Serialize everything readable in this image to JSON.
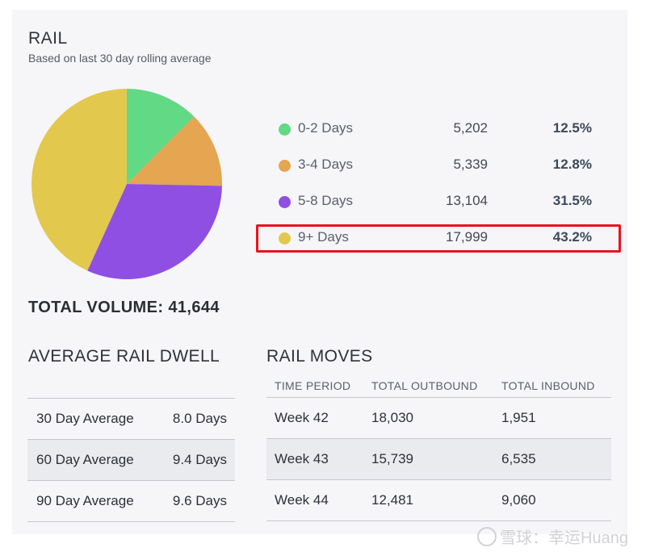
{
  "header": {
    "title": "RAIL",
    "subtitle": "Based on last 30 day rolling average"
  },
  "chart_data": {
    "type": "pie",
    "categories": [
      "0-2 Days",
      "3-4 Days",
      "5-8 Days",
      "9+ Days"
    ],
    "values": [
      5202,
      5339,
      13104,
      17999
    ],
    "percentages": [
      12.5,
      12.8,
      31.5,
      43.2
    ],
    "colors": [
      "#62d985",
      "#e5a551",
      "#8f4fe3",
      "#e3c84e"
    ]
  },
  "legend": [
    {
      "label": "0-2 Days",
      "count": "5,202",
      "pct": "12.5%",
      "color": "#62d985"
    },
    {
      "label": "3-4 Days",
      "count": "5,339",
      "pct": "12.8%",
      "color": "#e5a551"
    },
    {
      "label": "5-8 Days",
      "count": "13,104",
      "pct": "31.5%",
      "color": "#8f4fe3"
    },
    {
      "label": "9+ Days",
      "count": "17,999",
      "pct": "43.2%",
      "color": "#e3c84e"
    }
  ],
  "total_volume": "TOTAL VOLUME: 41,644",
  "dwell": {
    "title": "AVERAGE RAIL DWELL",
    "rows": [
      {
        "name": "30 Day Average",
        "value": "8.0 Days"
      },
      {
        "name": "60 Day Average",
        "value": "9.4 Days"
      },
      {
        "name": "90 Day Average",
        "value": "9.6 Days"
      }
    ]
  },
  "moves": {
    "title": "RAIL MOVES",
    "headers": [
      "TIME PERIOD",
      "TOTAL OUTBOUND",
      "TOTAL INBOUND"
    ],
    "rows": [
      {
        "period": "Week 42",
        "outbound": "18,030",
        "inbound": "1,951"
      },
      {
        "period": "Week 43",
        "outbound": "15,739",
        "inbound": "6,535"
      },
      {
        "period": "Week 44",
        "outbound": "12,481",
        "inbound": "9,060"
      }
    ]
  },
  "watermark": "雪球：幸运Huang",
  "highlight_color": "#e8131c"
}
